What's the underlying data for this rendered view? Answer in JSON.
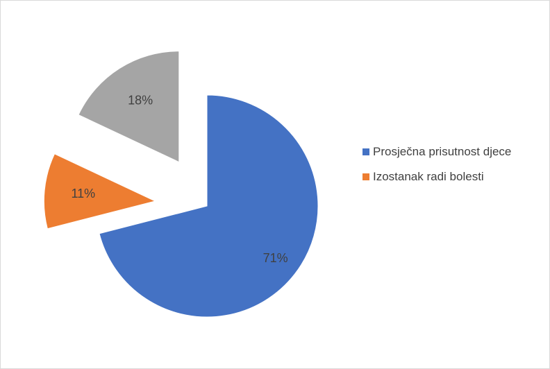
{
  "chart_data": {
    "type": "pie",
    "categories": [
      "Prosječna prisutnost djece",
      "Izostanak radi bolesti",
      null
    ],
    "values": [
      71,
      11,
      18
    ],
    "value_labels": [
      "71%",
      "11%",
      "18%"
    ],
    "colors": [
      "#4472c4",
      "#ed7d31",
      "#a5a5a5"
    ],
    "legend": "right"
  }
}
